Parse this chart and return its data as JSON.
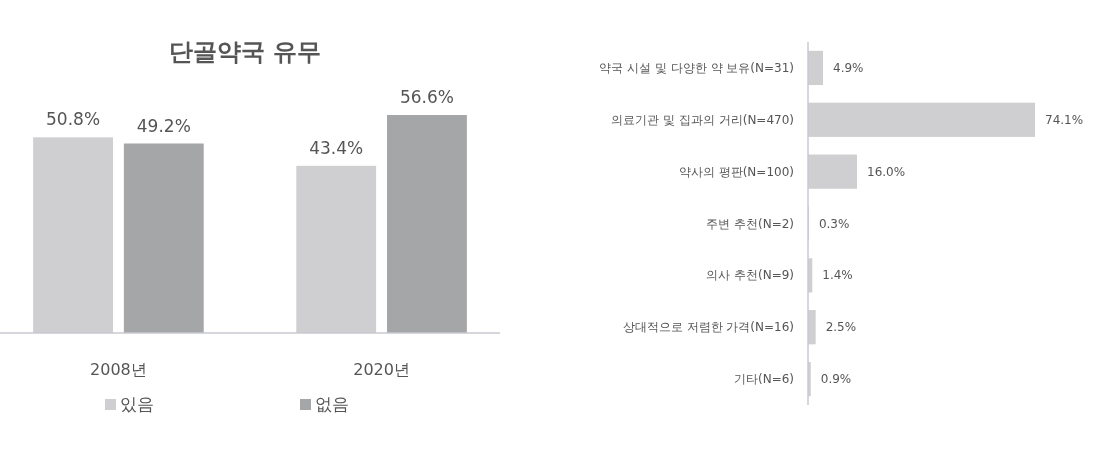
{
  "chart_data": [
    {
      "type": "bar",
      "title": "단골약국 유무",
      "categories": [
        "2008년",
        "2020년"
      ],
      "series": [
        {
          "name": "있음",
          "color": "#cfcfd1",
          "values": [
            50.8,
            43.4
          ],
          "value_labels": [
            "50.8%",
            "43.4%"
          ]
        },
        {
          "name": "없음",
          "color": "#a5a6a8",
          "values": [
            49.2,
            56.6
          ],
          "value_labels": [
            "49.2%",
            "56.6%"
          ]
        }
      ],
      "legend": "bottom"
    },
    {
      "type": "bar",
      "orientation": "horizontal",
      "categories": [
        "약국 시설 및 다양한 약 보유(N=31)",
        "의료기관 및 집과의 거리(N=470)",
        "약사의 평판(N=100)",
        "주변 추천(N=2)",
        "의사 추천(N=9)",
        "상대적으로 저렴한 가격(N=16)",
        "기타(N=6)"
      ],
      "values": [
        4.9,
        74.1,
        16.0,
        0.3,
        1.4,
        2.5,
        0.9
      ],
      "value_labels": [
        "4.9%",
        "74.1%",
        "16.0%",
        "0.3%",
        "1.4%",
        "2.5%",
        "0.9%"
      ],
      "color": "#cfcfd1"
    }
  ]
}
